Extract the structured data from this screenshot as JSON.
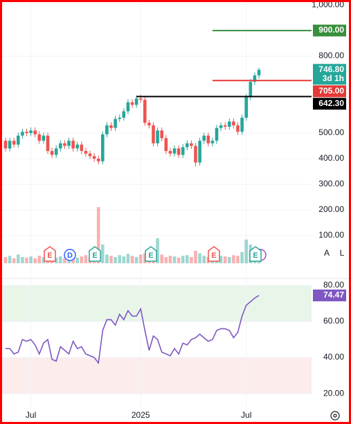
{
  "chart_data": [
    {
      "type": "candlestick",
      "open": [
        470,
        440,
        470,
        455,
        490,
        505,
        500,
        510,
        495,
        470,
        490,
        430,
        415,
        440,
        460,
        450,
        470,
        440,
        455,
        430,
        420,
        410,
        400,
        390,
        495,
        530,
        520,
        555,
        560,
        585,
        620,
        610,
        635,
        630,
        540,
        530,
        460,
        510,
        480,
        430,
        420,
        440,
        415,
        445,
        460,
        450,
        385,
        470,
        490,
        460,
        470,
        520,
        530,
        525,
        545,
        530,
        505,
        560,
        640,
        700,
        725
      ],
      "high": [
        482,
        482,
        482,
        502,
        517,
        517,
        522,
        522,
        507,
        502,
        502,
        442,
        452,
        472,
        472,
        482,
        482,
        467,
        467,
        442,
        432,
        422,
        412,
        507,
        542,
        542,
        567,
        572,
        597,
        632,
        632,
        647,
        650,
        642,
        552,
        542,
        522,
        522,
        492,
        442,
        452,
        452,
        457,
        472,
        472,
        462,
        482,
        502,
        502,
        482,
        532,
        542,
        542,
        557,
        557,
        542,
        572,
        652,
        712,
        737,
        755
      ],
      "low": [
        428,
        428,
        443,
        443,
        478,
        488,
        488,
        483,
        458,
        458,
        418,
        403,
        403,
        428,
        438,
        438,
        428,
        428,
        418,
        408,
        398,
        388,
        378,
        378,
        483,
        508,
        508,
        543,
        548,
        573,
        598,
        598,
        618,
        528,
        518,
        448,
        448,
        468,
        418,
        408,
        408,
        403,
        403,
        433,
        438,
        370,
        373,
        458,
        448,
        448,
        458,
        508,
        513,
        513,
        518,
        493,
        493,
        548,
        628,
        688,
        713
      ],
      "close": [
        440,
        470,
        455,
        490,
        505,
        500,
        510,
        495,
        470,
        490,
        430,
        415,
        440,
        460,
        450,
        470,
        440,
        455,
        430,
        420,
        410,
        400,
        390,
        495,
        530,
        520,
        555,
        560,
        585,
        620,
        610,
        635,
        630,
        540,
        530,
        460,
        510,
        480,
        430,
        420,
        440,
        415,
        445,
        460,
        450,
        385,
        470,
        490,
        460,
        470,
        520,
        530,
        525,
        545,
        530,
        505,
        560,
        640,
        700,
        725,
        746.8
      ],
      "up_color": "#26a69a",
      "down_color": "#ef5350",
      "ylim": [
        -8,
        1011
      ],
      "yticks": [
        {
          "value": 1000,
          "label": "1,000.00"
        },
        {
          "value": 800,
          "label": "800.00"
        },
        {
          "value": 500,
          "label": "500.00"
        },
        {
          "value": 400,
          "label": "400.00"
        },
        {
          "value": 300,
          "label": "300.00"
        },
        {
          "value": 200,
          "label": "200.00"
        },
        {
          "value": 100,
          "label": "100.00"
        }
      ],
      "grid": true,
      "price_lines": [
        {
          "value": 900,
          "label": "900.00",
          "color": "#388e3c"
        },
        {
          "value": 705,
          "label": "705.00",
          "color": "#e53935"
        },
        {
          "value": 642.3,
          "label": "642.30",
          "color": "#000000"
        }
      ],
      "last_price": {
        "value": 746.8,
        "label": "746.80",
        "countdown": "3d 1h",
        "color": "#26a69a"
      },
      "events": [
        {
          "label": "E"
        },
        {
          "label": "D"
        },
        {
          "label": "E"
        },
        {
          "label": "E"
        },
        {
          "label": "E"
        },
        {
          "label": "E"
        }
      ]
    },
    {
      "type": "bar",
      "values": [
        10,
        12,
        8,
        14,
        10,
        9,
        11,
        8,
        12,
        10,
        13,
        15,
        9,
        11,
        8,
        10,
        12,
        9,
        11,
        13,
        10,
        12,
        90,
        30,
        14,
        12,
        10,
        13,
        11,
        15,
        12,
        10,
        14,
        16,
        13,
        12,
        40,
        14,
        10,
        12,
        11,
        9,
        12,
        13,
        10,
        20,
        16,
        12,
        10,
        13,
        15,
        12,
        11,
        10,
        13,
        12,
        18,
        38,
        30,
        14,
        12
      ],
      "ylim": [
        0,
        100
      ]
    },
    {
      "type": "line",
      "categories": [
        null,
        null,
        null,
        null,
        null,
        null,
        "Jul",
        null,
        null,
        null,
        null,
        null,
        null,
        null,
        null,
        null,
        null,
        null,
        null,
        null,
        null,
        null,
        null,
        null,
        null,
        null,
        null,
        null,
        null,
        null,
        null,
        null,
        "2025",
        null,
        null,
        null,
        null,
        null,
        null,
        null,
        null,
        null,
        null,
        null,
        null,
        null,
        null,
        null,
        null,
        null,
        null,
        null,
        null,
        null,
        null,
        null,
        null,
        "Jul",
        null,
        null,
        null
      ],
      "values": [
        45,
        45,
        42,
        43,
        50,
        49,
        50,
        47,
        42,
        48,
        50,
        39,
        38,
        46,
        44,
        42,
        49,
        45,
        46,
        42,
        41,
        40,
        37,
        55,
        61,
        61,
        58,
        64,
        61,
        66,
        63,
        63,
        67,
        55,
        44,
        52,
        50,
        43,
        42,
        41,
        45,
        42,
        48,
        47,
        50,
        51,
        53,
        51,
        49,
        50,
        55,
        56,
        56,
        55,
        51,
        54,
        63,
        69,
        71,
        73,
        74.47
      ],
      "value_labels": [
        null,
        null,
        null,
        null,
        null,
        null,
        null,
        null,
        null,
        null,
        null,
        null,
        null,
        null,
        null,
        null,
        null,
        null,
        null,
        null,
        null,
        null,
        null,
        null,
        null,
        null,
        null,
        null,
        null,
        null,
        null,
        null,
        null,
        null,
        null,
        null,
        null,
        null,
        null,
        null,
        null,
        null,
        null,
        null,
        null,
        null,
        null,
        null,
        null,
        null,
        null,
        null,
        null,
        null,
        null,
        null,
        null,
        null,
        null,
        null,
        "74.47"
      ],
      "color": "#7e57c2",
      "ylim": [
        13.5,
        82.7
      ],
      "yticks": [
        {
          "value": 80,
          "label": "80.00"
        },
        {
          "value": 60,
          "label": "60.00"
        },
        {
          "value": 40,
          "label": "40.00"
        },
        {
          "value": 20,
          "label": "20.00"
        }
      ],
      "bands": [
        {
          "from": 60,
          "to": 80,
          "color": "#e8f5e9"
        },
        {
          "from": 20,
          "to": 40,
          "color": "#fdecec"
        }
      ]
    }
  ],
  "controls": [
    "A",
    "L"
  ]
}
